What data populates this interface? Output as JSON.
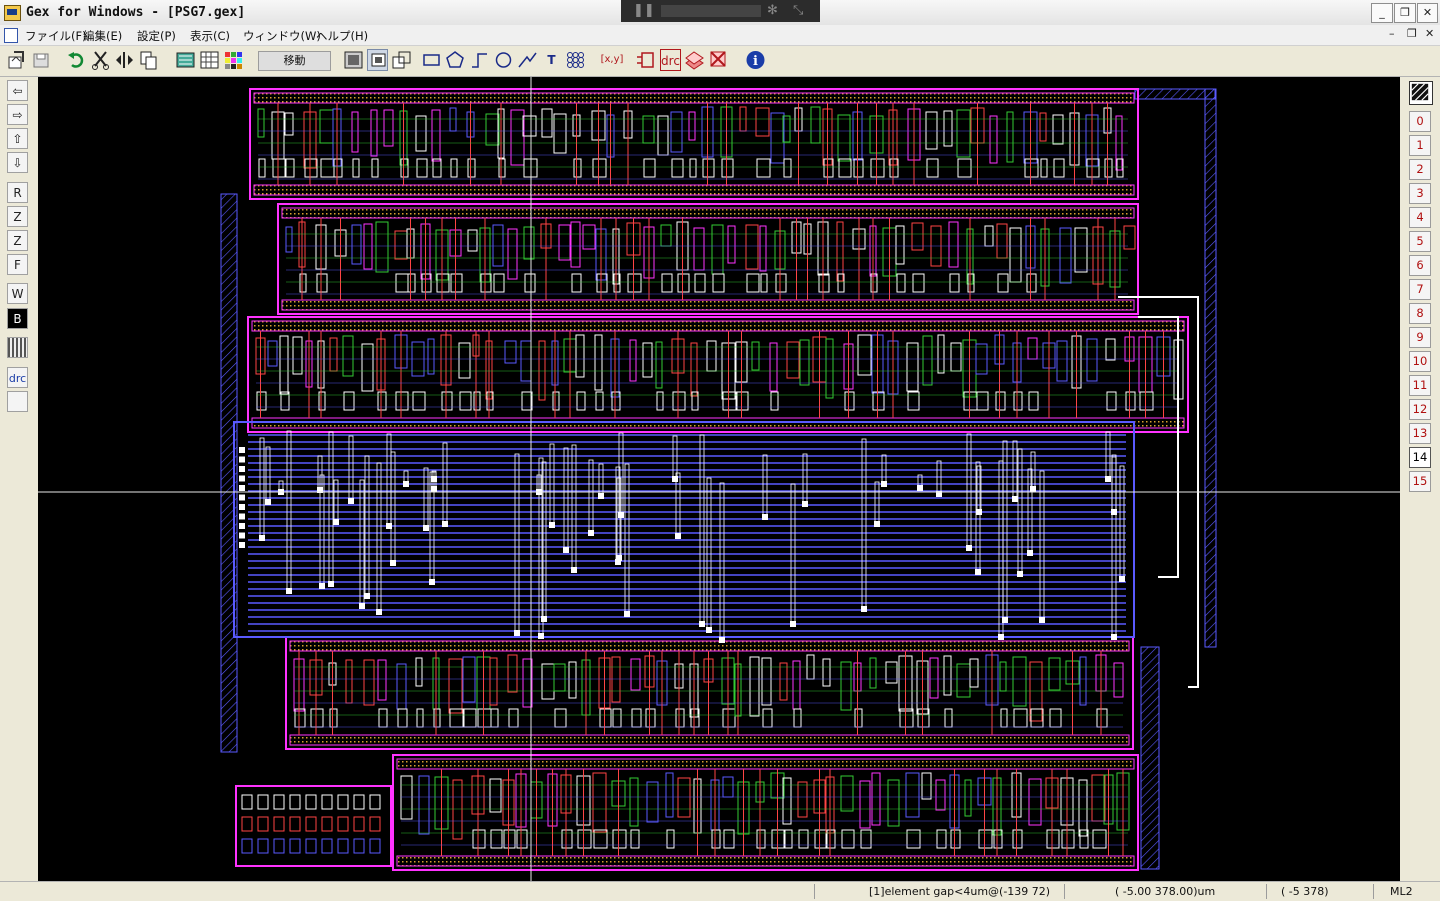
{
  "window": {
    "title": "Gex for Windows - [PSG7.gex]",
    "minimize_label": "_",
    "maximize_label": "❐",
    "close_label": "✕"
  },
  "overlay_bar": {
    "pause_icon": "pause-icon",
    "settings_icon": "gear-icon",
    "collapse_icon": "collapse-icon"
  },
  "menu": {
    "items": [
      "ファイル(F)",
      "編集(E)",
      "設定(P)",
      "表示(C)",
      "ウィンドウ(W)",
      "ヘルプ(H)"
    ],
    "mdi_min": "–",
    "mdi_restore": "❐",
    "mdi_close": "✕"
  },
  "toolbar": {
    "mode_text": "移動",
    "icons": [
      "open-icon",
      "save-icon",
      "undo-icon",
      "cut-icon",
      "mirror-icon",
      "copy-icon",
      "library-icon",
      "grid-icon",
      "palette-icon",
      "select-area-icon",
      "select-icon",
      "select-multi-icon",
      "rectangle-icon",
      "polygon-icon",
      "path-icon",
      "circle-icon",
      "line-icon",
      "text-icon",
      "array-icon",
      "coordinate-icon",
      "cell-icon",
      "drc-icon",
      "layer-icon",
      "erase-icon",
      "info-icon"
    ],
    "coordinate_label": "[x,y]",
    "drc_label": "drc",
    "text_tool_label": "T",
    "info_label": "i"
  },
  "left_toolbar": {
    "buttons": [
      "⇦",
      "⇨",
      "⇧",
      "⇩",
      "R",
      "Z",
      "Z",
      "F",
      "W",
      "B",
      "",
      "drc",
      ""
    ],
    "icons": [
      "arrow-left-icon",
      "arrow-right-icon",
      "arrow-up-icon",
      "arrow-down-icon",
      "zoom-redraw-icon",
      "zoom-in-icon",
      "zoom-out-icon",
      "zoom-fit-icon",
      "white-background-icon",
      "black-background-icon",
      "pattern-icon",
      "drc-run-icon",
      "drc-clear-icon"
    ]
  },
  "layers": {
    "labels": [
      "0",
      "1",
      "2",
      "3",
      "4",
      "5",
      "6",
      "7",
      "8",
      "9",
      "10",
      "11",
      "12",
      "13",
      "14",
      "15"
    ],
    "active": "14"
  },
  "colors": {
    "canvas_bg": "#000000",
    "metal_blue": "#5a5aff",
    "poly_magenta": "#ff33ff",
    "diffusion_red": "#ff4444",
    "contact_white": "#ffffff",
    "n_well_green": "#33cc33",
    "outline_orange": "#d9a030"
  },
  "status": {
    "message": "[1]element gap<4um@(-139 72)",
    "coord_um": "(   -5.00   378.00)um",
    "coord_grid": "(    -5    378)",
    "layer_name": "ML2"
  }
}
